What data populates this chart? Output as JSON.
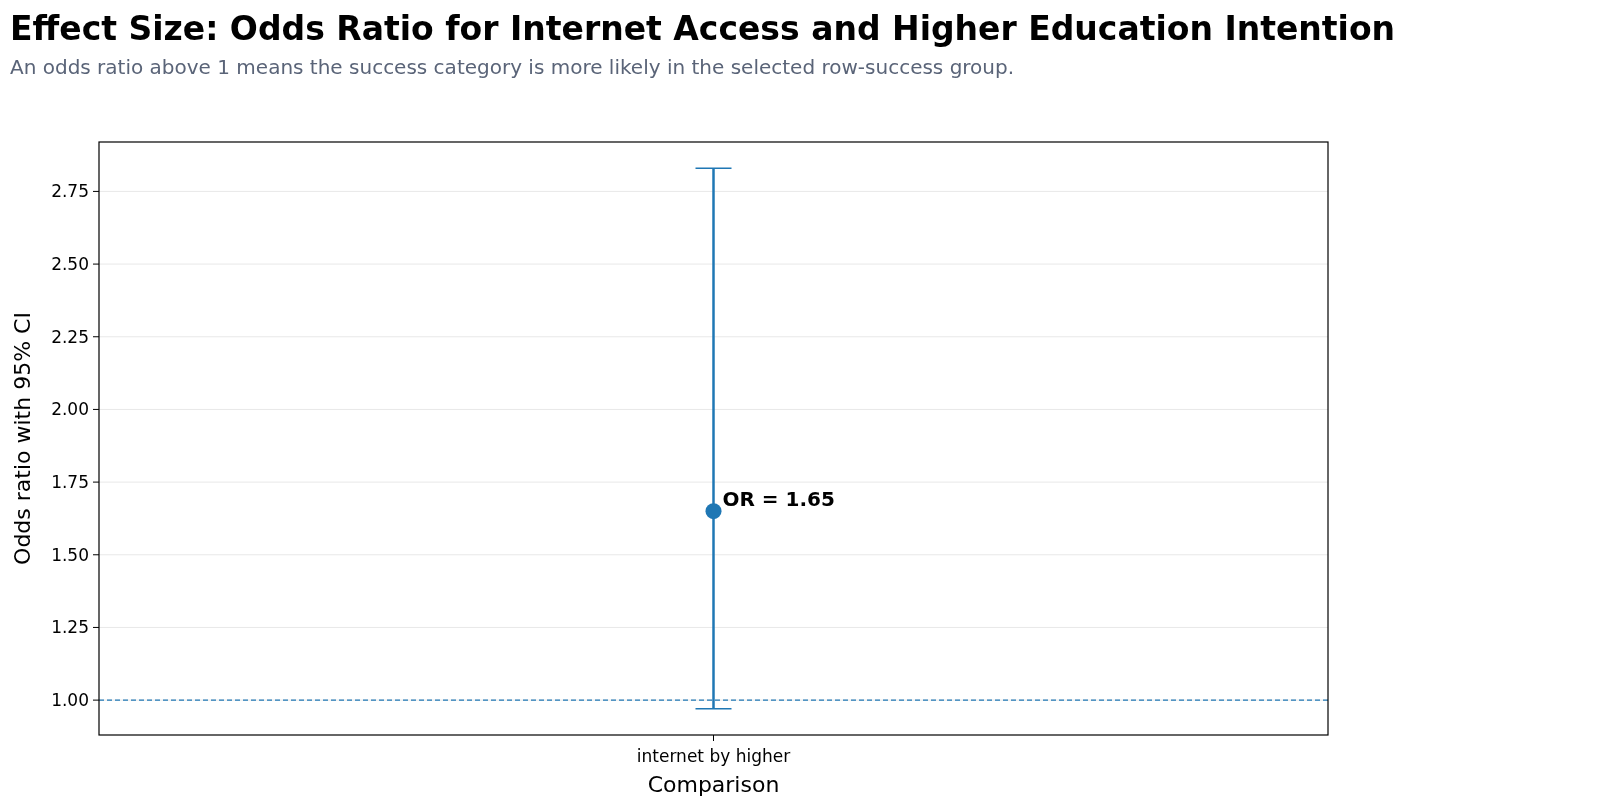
{
  "chart_data": {
    "type": "scatter",
    "title": "Effect Size: Odds Ratio for Internet Access and Higher Education Intention",
    "subtitle": "An odds ratio above 1 means the success category is more likely in the selected row-success group.",
    "xlabel": "Comparison",
    "ylabel": "Odds ratio with 95% CI",
    "categories": [
      "internet by higher"
    ],
    "series": [
      {
        "color": "#1f77b4",
        "values": [
          1.65
        ],
        "errors": [
          [
            0.97,
            2.83
          ]
        ]
      }
    ],
    "ylim": [
      0.88,
      2.92
    ],
    "yticks": [
      {
        "value": 1,
        "label": "1.00"
      },
      {
        "value": 1.25,
        "label": "1.25"
      },
      {
        "value": 1.5,
        "label": "1.50"
      },
      {
        "value": 1.75,
        "label": "1.75"
      },
      {
        "value": 2,
        "label": "2.00"
      },
      {
        "value": 2.25,
        "label": "2.25"
      },
      {
        "value": 2.5,
        "label": "2.50"
      },
      {
        "value": 2.75,
        "label": "2.75"
      }
    ],
    "grid": "y",
    "marker": "circle",
    "ref_lines": [
      {
        "axis": "y",
        "value": 1,
        "color": "#1f77b4",
        "line_style": "dashed"
      }
    ],
    "annotations": [
      {
        "text": "OR = 1.65",
        "x": "internet by higher",
        "y": 1.65
      }
    ]
  }
}
